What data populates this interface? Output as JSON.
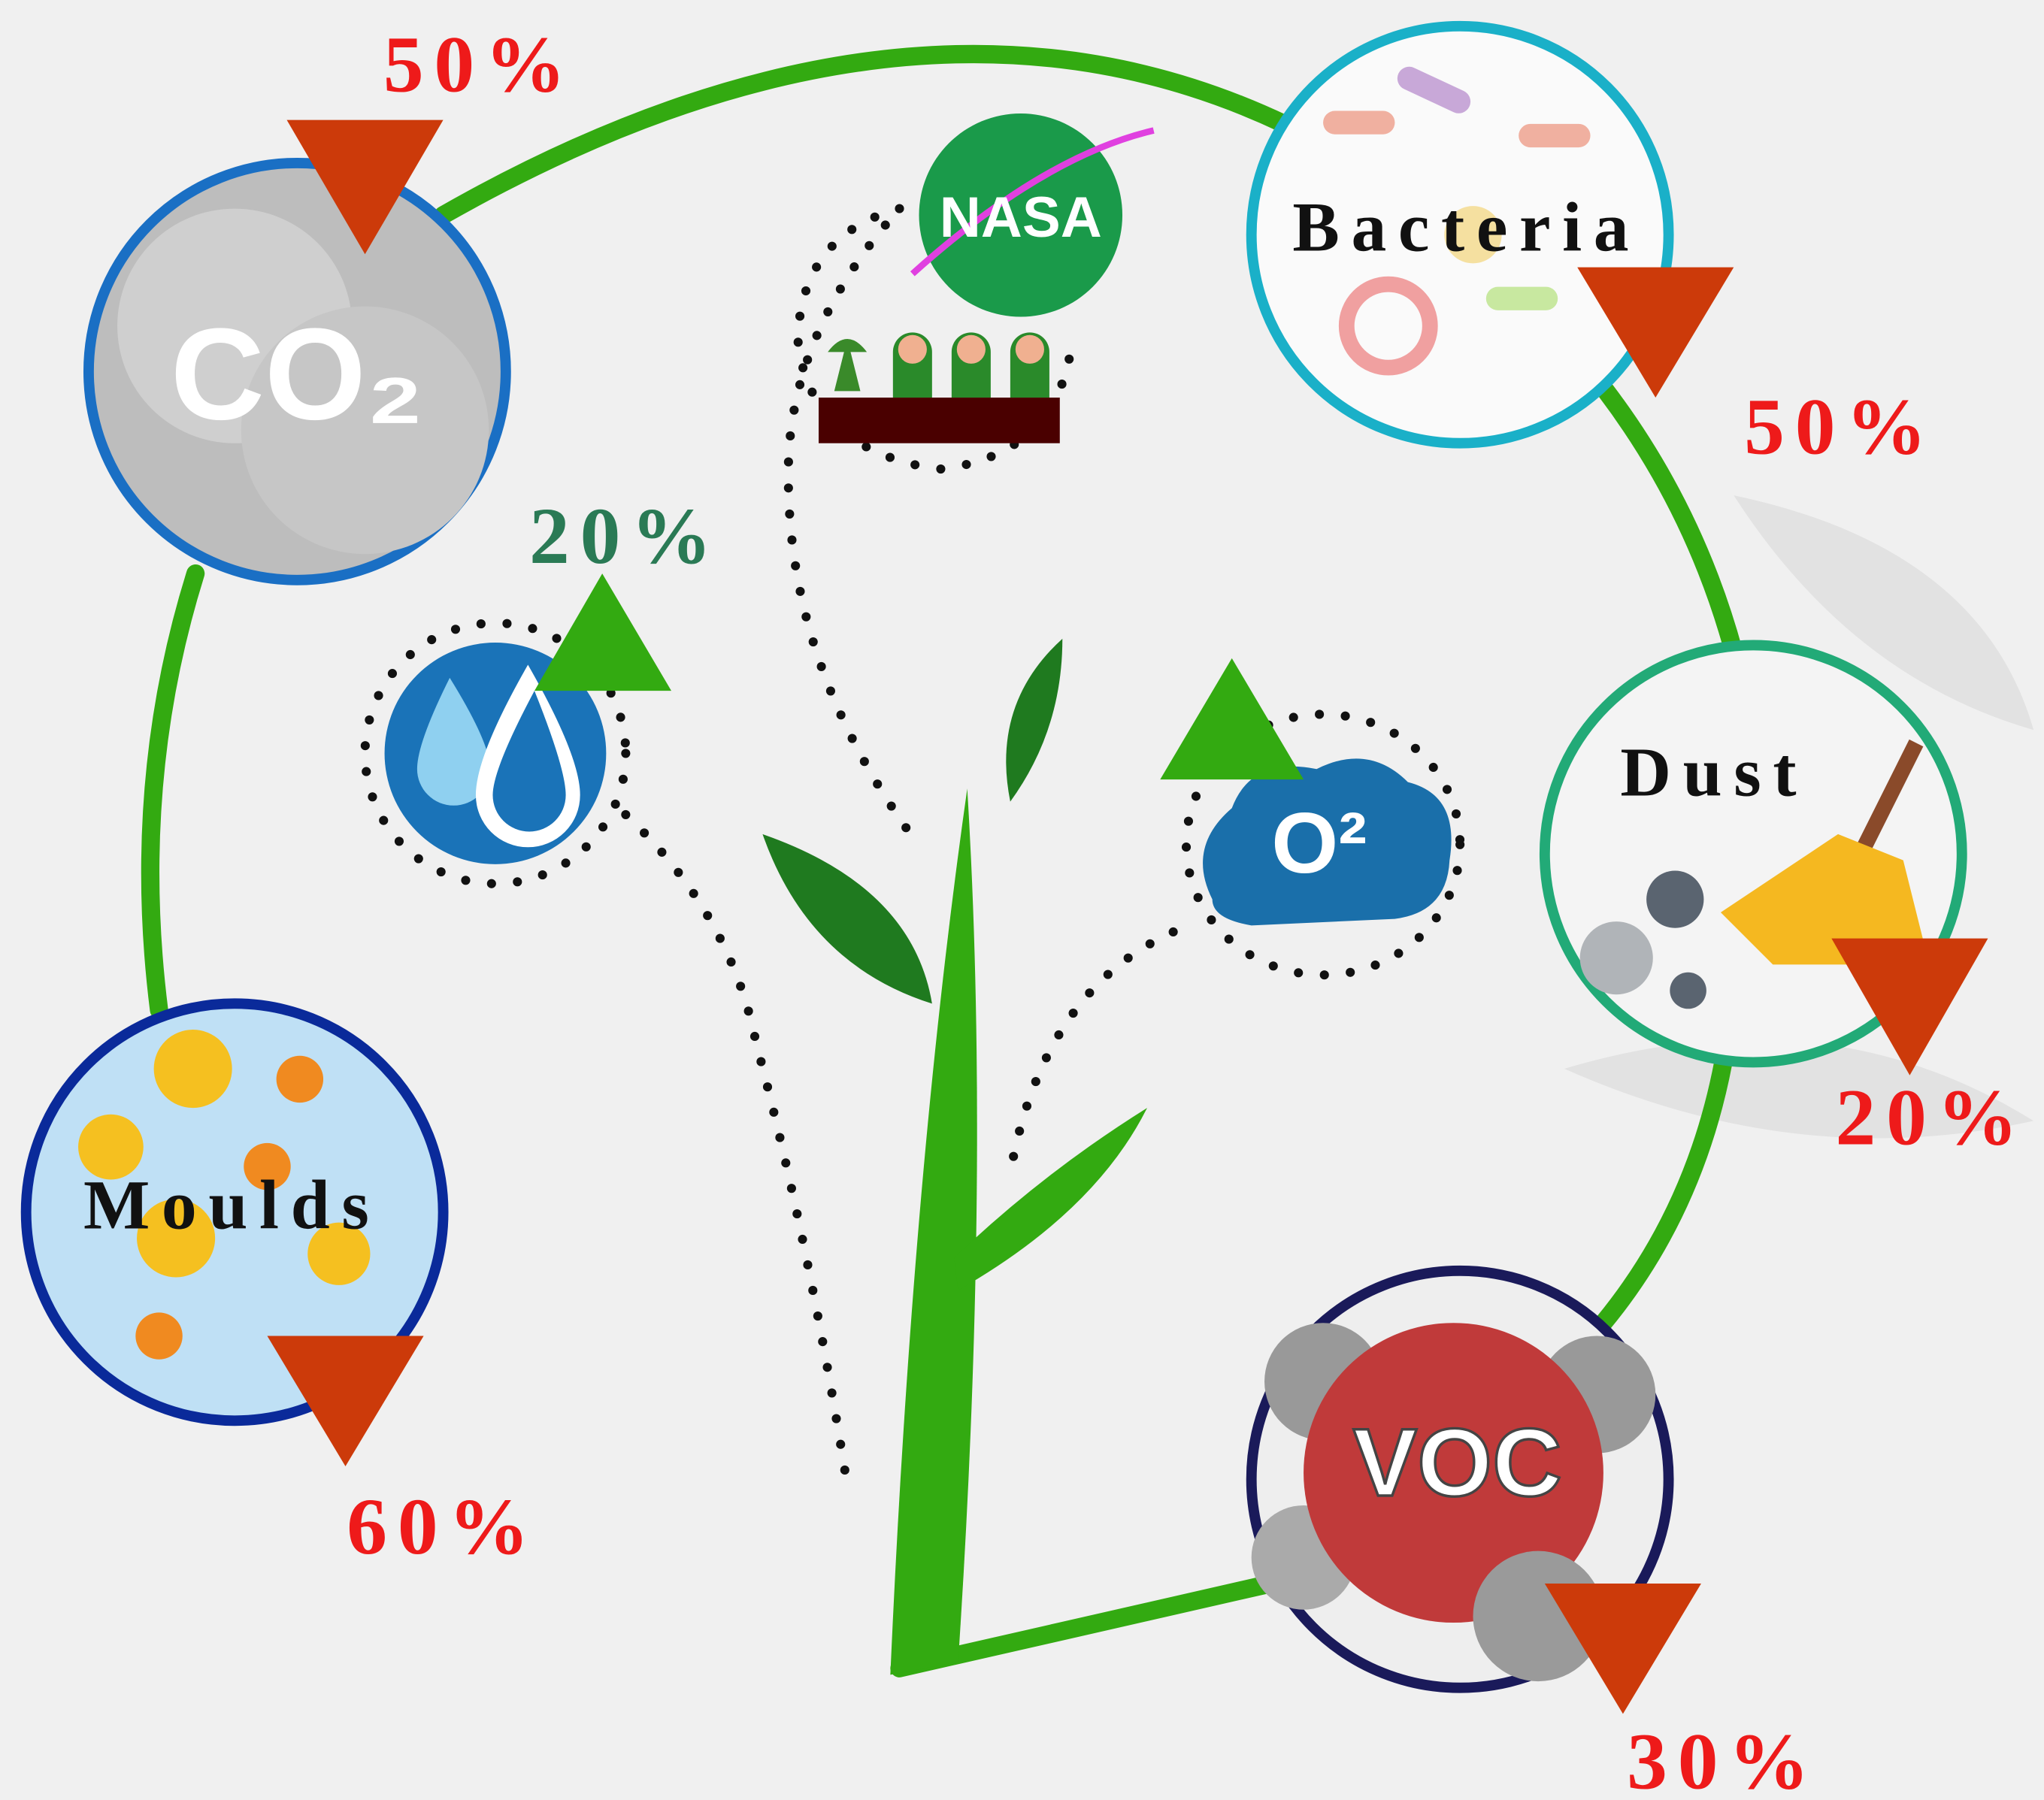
{
  "nodes": {
    "co2": {
      "label": "CO₂",
      "change": "50%"
    },
    "bacteria": {
      "label": "Bacteria",
      "change": "50%"
    },
    "dust": {
      "label": "Dust",
      "change": "20%"
    },
    "moulds": {
      "label": "Moulds",
      "change": "60%"
    },
    "voc": {
      "label": "VOC",
      "change": "30%"
    },
    "humidity": {
      "change": "20%"
    },
    "oxygen": {
      "label": "O²"
    },
    "nasa": {
      "label": "NASA"
    }
  }
}
